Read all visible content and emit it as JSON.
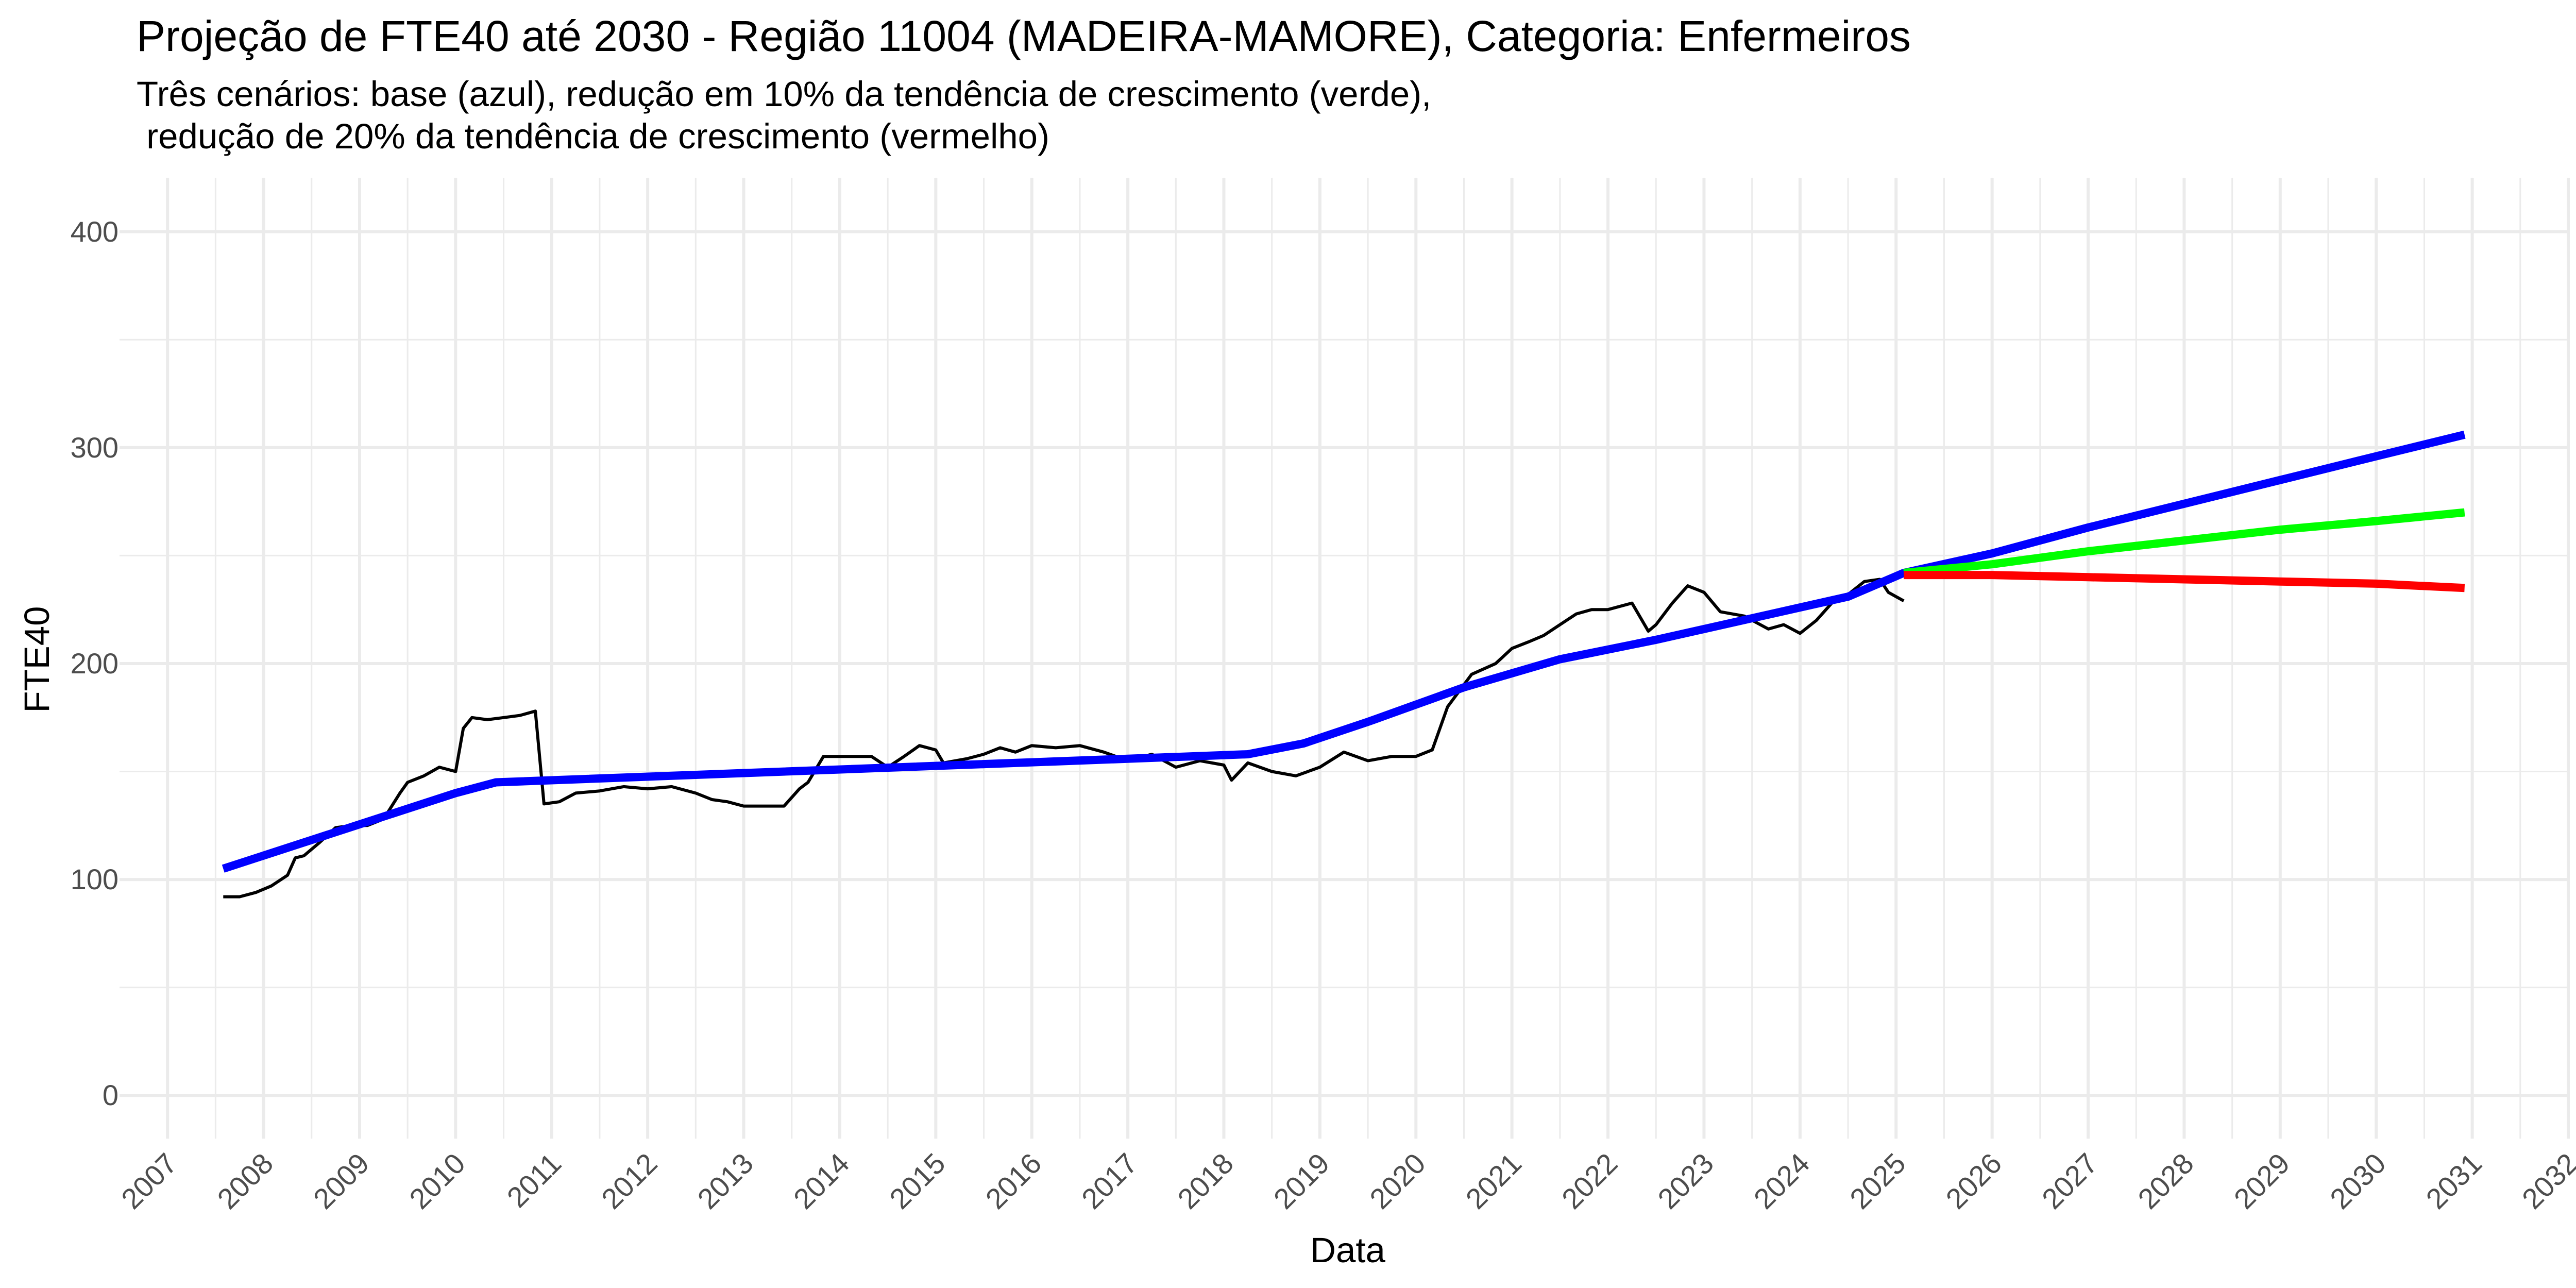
{
  "chart_data": {
    "type": "line",
    "title": "Projeção de FTE40 até 2030 - Região 11004 (MADEIRA-MAMORE), Categoria: Enfermeiros",
    "subtitle": "Três cenários: base (azul), redução em 10% da tendência de crescimento (verde),\n redução de 20% da tendência de crescimento (vermelho)",
    "xlabel": "Data",
    "ylabel": "FTE40",
    "xlim": [
      2006.5,
      2032.0
    ],
    "ylim": [
      -20,
      425
    ],
    "x_ticks": [
      "2007",
      "2008",
      "2009",
      "2010",
      "2011",
      "2012",
      "2013",
      "2014",
      "2015",
      "2016",
      "2017",
      "2018",
      "2019",
      "2020",
      "2021",
      "2022",
      "2023",
      "2024",
      "2025",
      "2026",
      "2027",
      "2028",
      "2029",
      "2030",
      "2031",
      "2032"
    ],
    "y_ticks": [
      0,
      100,
      200,
      300,
      400
    ],
    "grid": true,
    "legend": "none",
    "series": [
      {
        "color": "#000000",
        "x": [
          2007.58,
          2007.75,
          2007.92,
          2008.08,
          2008.25,
          2008.33,
          2008.42,
          2008.58,
          2008.75,
          2008.92,
          2009.08,
          2009.25,
          2009.42,
          2009.5,
          2009.67,
          2009.83,
          2010.0,
          2010.08,
          2010.17,
          2010.33,
          2010.5,
          2010.67,
          2010.83,
          2010.92,
          2011.08,
          2011.25,
          2011.5,
          2011.75,
          2012.0,
          2012.25,
          2012.5,
          2012.67,
          2012.83,
          2013.0,
          2013.25,
          2013.42,
          2013.58,
          2013.67,
          2013.83,
          2014.08,
          2014.33,
          2014.5,
          2014.67,
          2014.83,
          2015.0,
          2015.08,
          2015.33,
          2015.5,
          2015.67,
          2015.83,
          2016.0,
          2016.25,
          2016.5,
          2016.75,
          2017.0,
          2017.25,
          2017.5,
          2017.75,
          2018.0,
          2018.08,
          2018.25,
          2018.5,
          2018.75,
          2019.0,
          2019.25,
          2019.5,
          2019.75,
          2020.0,
          2020.17,
          2020.33,
          2020.58,
          2020.83,
          2021.0,
          2021.17,
          2021.33,
          2021.5,
          2021.67,
          2021.83,
          2022.0,
          2022.25,
          2022.42,
          2022.5,
          2022.67,
          2022.83,
          2023.0,
          2023.17,
          2023.42,
          2023.67,
          2023.83,
          2024.0,
          2024.17,
          2024.33,
          2024.5,
          2024.67,
          2024.83,
          2024.92,
          2025.08
        ],
        "values": [
          92,
          92,
          94,
          97,
          102,
          110,
          111,
          117,
          124,
          125,
          125,
          128,
          140,
          145,
          148,
          152,
          150,
          170,
          175,
          174,
          175,
          176,
          178,
          135,
          136,
          140,
          141,
          143,
          142,
          143,
          140,
          137,
          136,
          134,
          134,
          134,
          142,
          145,
          157,
          157,
          157,
          152,
          157,
          162,
          160,
          154,
          156,
          158,
          161,
          159,
          162,
          161,
          162,
          159,
          155,
          158,
          152,
          155,
          153,
          146,
          154,
          150,
          148,
          152,
          159,
          155,
          157,
          157,
          160,
          180,
          195,
          200,
          207,
          210,
          213,
          218,
          223,
          225,
          225,
          228,
          215,
          218,
          228,
          236,
          233,
          224,
          222,
          216,
          218,
          214,
          220,
          228,
          232,
          238,
          239,
          233,
          229
        ]
      },
      {
        "color": "#0000ff",
        "x": [
          2007.58,
          2010.0,
          2010.42,
          2018.25,
          2018.83,
          2019.5,
          2020.0,
          2020.5,
          2021.5,
          2022.5,
          2023.5,
          2024.5,
          2025.08,
          2026.0,
          2027.0,
          2028.0,
          2029.0,
          2030.0,
          2030.92
        ],
        "values": [
          105,
          140,
          145,
          158,
          163,
          173,
          181,
          189,
          202,
          211,
          221,
          231,
          242,
          251,
          263,
          274,
          285,
          296,
          306
        ]
      },
      {
        "color": "#00ff00",
        "x": [
          2025.08,
          2026.0,
          2027.0,
          2028.0,
          2029.0,
          2030.0,
          2030.92
        ],
        "values": [
          242,
          246,
          252,
          257,
          262,
          266,
          270
        ]
      },
      {
        "color": "#ff0000",
        "x": [
          2025.08,
          2026.0,
          2027.0,
          2028.0,
          2029.0,
          2030.0,
          2030.92
        ],
        "values": [
          241,
          241,
          240,
          239,
          238,
          237,
          235
        ]
      }
    ]
  }
}
